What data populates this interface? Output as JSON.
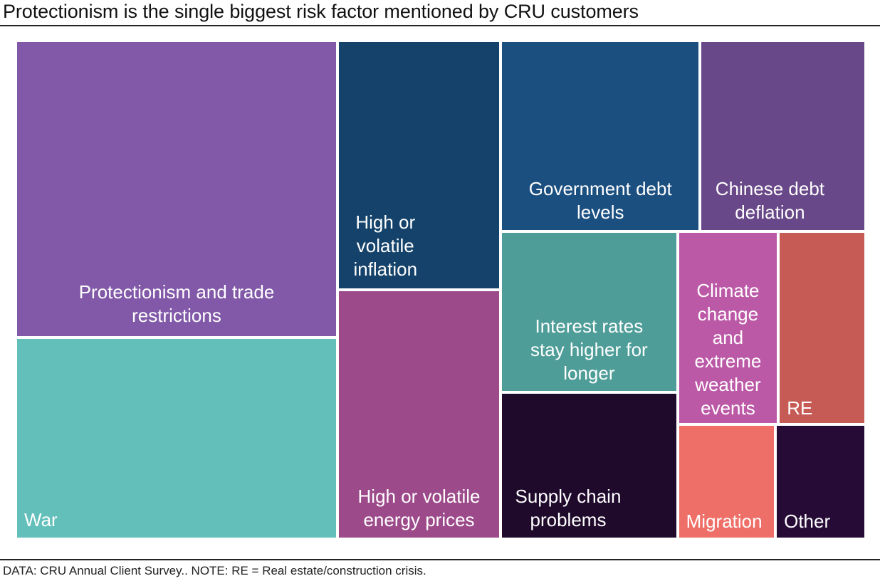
{
  "chart_data": {
    "type": "treemap",
    "title": "Protectionism is the single biggest risk factor mentioned by CRU customers",
    "footnote": "DATA: CRU Annual Client Survey.. NOTE: RE = Real estate/construction crisis.",
    "value_unit": "estimated share of mentions (%), derived from tile area; no values printed on chart",
    "items": [
      {
        "id": "protectionism",
        "label": "Protectionism and trade\nrestrictions",
        "share": 22.1,
        "color": "#8159A8"
      },
      {
        "id": "war",
        "label": "War",
        "share": 15.0,
        "color": "#62BFBA"
      },
      {
        "id": "inflation",
        "label": "High or\nvolatile\ninflation",
        "share": 9.4,
        "color": "#14426A"
      },
      {
        "id": "energy",
        "label": "High or volatile\nenergy prices",
        "share": 9.4,
        "color": "#9C4A8A"
      },
      {
        "id": "gov-debt",
        "label": "Government debt\nlevels",
        "share": 8.8,
        "color": "#1B4F80"
      },
      {
        "id": "chinese-debt",
        "label": "Chinese debt\ndeflation",
        "share": 7.3,
        "color": "#684888"
      },
      {
        "id": "interest-rates",
        "label": "Interest rates\nstay higher for\nlonger",
        "share": 6.6,
        "color": "#4E9D98"
      },
      {
        "id": "supply-chain",
        "label": "Supply chain\nproblems",
        "share": 6.0,
        "color": "#1F0A2C"
      },
      {
        "id": "climate",
        "label": "Climate\nchange\nand\nextreme\nweather\nevents",
        "share": 4.5,
        "color": "#BC59A7"
      },
      {
        "id": "re",
        "label": "RE",
        "share": 3.9,
        "color": "#C65B55"
      },
      {
        "id": "migration",
        "label": "Migration",
        "share": 2.6,
        "color": "#EE6F67"
      },
      {
        "id": "other",
        "label": "Other",
        "share": 2.4,
        "color": "#260B36"
      }
    ]
  }
}
